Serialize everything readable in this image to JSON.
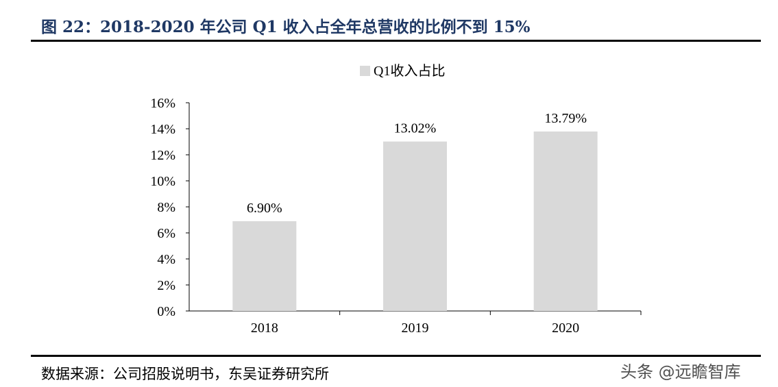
{
  "header": {
    "title": "图 22：2018-2020 年公司 Q1 收入占全年总营收的比例不到 15%"
  },
  "footer": {
    "source": "数据来源：公司招股说明书，东吴证券研究所",
    "watermark": "头条 @远瞻智库"
  },
  "chart_data": {
    "type": "bar",
    "categories": [
      "2018",
      "2019",
      "2020"
    ],
    "series": [
      {
        "name": "Q1收入占比",
        "values": [
          6.9,
          13.02,
          13.79
        ],
        "labels": [
          "6.90%",
          "13.02%",
          "13.79%"
        ],
        "color": "#d9d9d9"
      }
    ],
    "yticks": [
      "0%",
      "2%",
      "4%",
      "6%",
      "8%",
      "10%",
      "12%",
      "14%",
      "16%"
    ],
    "ylim": [
      0,
      16
    ],
    "grid": false,
    "legend_position": "top"
  }
}
